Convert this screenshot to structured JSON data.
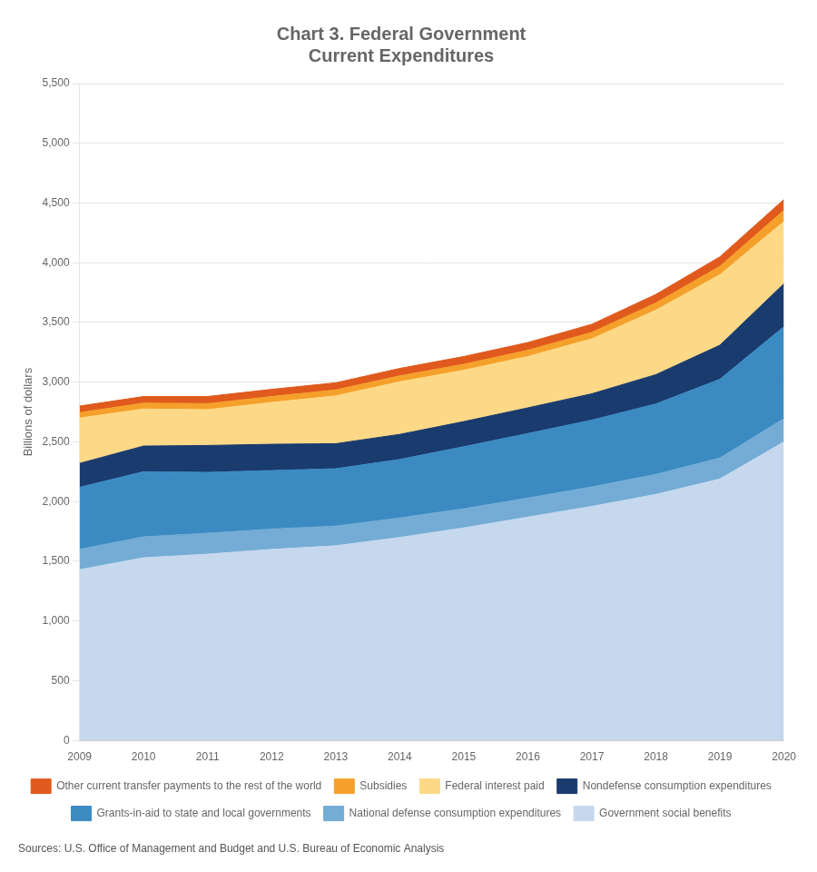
{
  "chart_data": {
    "type": "area",
    "stacked": true,
    "title": "Chart 3. Federal Government\nCurrent Expenditures",
    "ylabel": "Billions of dollars",
    "source": "Sources: U.S. Office of Management and Budget and U.S. Bureau of Economic Analysis",
    "x": [
      2009,
      2010,
      2011,
      2012,
      2013,
      2014,
      2015,
      2016,
      2017,
      2018,
      2019,
      2020
    ],
    "xlim": [
      2009,
      2020
    ],
    "xticks": [
      2009,
      2010,
      2011,
      2012,
      2013,
      2014,
      2015,
      2016,
      2017,
      2018,
      2019,
      2020
    ],
    "ylim": [
      0,
      5500
    ],
    "yticks": [
      0,
      500,
      {
        "value": 1000,
        "label": "1,000"
      },
      {
        "value": 1500,
        "label": "1,500"
      },
      {
        "value": 2000,
        "label": "2,000"
      },
      {
        "value": 2500,
        "label": "2,500"
      },
      {
        "value": 3000,
        "label": "3,000"
      },
      {
        "value": 3500,
        "label": "3,500"
      },
      {
        "value": 4000,
        "label": "4,000"
      },
      {
        "value": 4500,
        "label": "4,500"
      },
      {
        "value": 5000,
        "label": "5,000"
      },
      {
        "value": 5500,
        "label": "5,500"
      }
    ],
    "grid": "y",
    "legend": "bottom",
    "series": [
      {
        "name": "Government social benefits",
        "color": "#c5d8ed",
        "values": [
          1430,
          1530,
          1560,
          1600,
          1630,
          1700,
          1780,
          1870,
          1960,
          2060,
          2190,
          2500
        ]
      },
      {
        "name": "National defense consumption expenditures",
        "color": "#74acd5",
        "values": [
          170,
          175,
          175,
          170,
          165,
          163,
          160,
          160,
          163,
          168,
          175,
          195
        ]
      },
      {
        "name": "Grants-in-aid to state and local governments",
        "color": "#3b8bc2",
        "values": [
          520,
          545,
          510,
          490,
          480,
          490,
          520,
          540,
          560,
          590,
          660,
          770
        ]
      },
      {
        "name": "Nondefense consumption expenditures",
        "color": "#1a3b6e",
        "values": [
          200,
          215,
          225,
          220,
          210,
          210,
          210,
          215,
          220,
          245,
          285,
          360
        ]
      },
      {
        "name": "Federal interest paid",
        "color": "#fdd987",
        "values": [
          380,
          310,
          300,
          350,
          400,
          440,
          430,
          430,
          460,
          540,
          590,
          520
        ]
      },
      {
        "name": "Subsidies",
        "color": "#f5a02a",
        "values": [
          45,
          50,
          50,
          50,
          50,
          50,
          50,
          52,
          54,
          60,
          70,
          95
        ]
      },
      {
        "name": "Other current transfer payments to the rest of the world",
        "color": "#e05a1e",
        "values": [
          55,
          55,
          60,
          60,
          60,
          62,
          65,
          65,
          68,
          72,
          80,
          90
        ]
      }
    ]
  }
}
